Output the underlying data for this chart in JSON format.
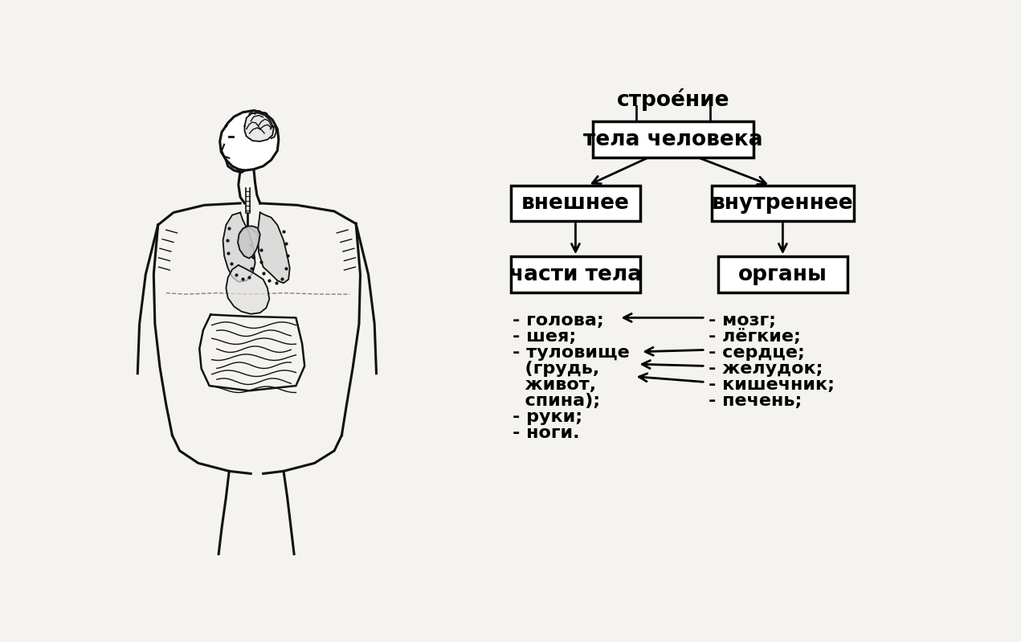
{
  "bg_color": "#f5f3ef",
  "box_color": "#ffffff",
  "box_edge_color": "#000000",
  "text_color": "#000000",
  "title_text": "строе́ние",
  "box1_text": "тела человека",
  "box2_text": "внешнее",
  "box3_text": "внутреннее",
  "box4_text": "части тела",
  "box5_text": "органы",
  "font_size_title": 19,
  "font_size_box": 19,
  "font_size_list": 16
}
